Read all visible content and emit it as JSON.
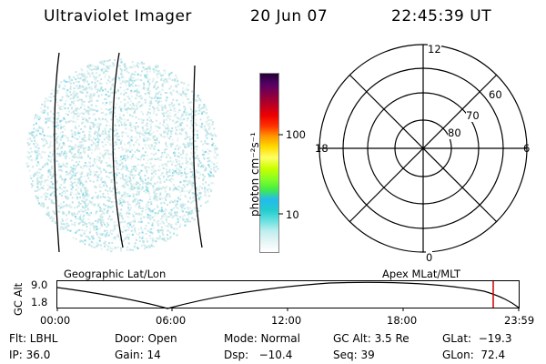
{
  "header": {
    "title": "Ultraviolet Imager",
    "date": "20 Jun 07",
    "time": "22:45:39 UT"
  },
  "colorbar": {
    "unit_label": "photon cm⁻²s⁻¹",
    "ticks": [
      "100",
      "10"
    ],
    "colors": [
      "#ffffff",
      "#e6f5f5",
      "#bfeeee",
      "#66e0e0",
      "#22cccc",
      "#22bbee",
      "#44ee44",
      "#88ff22",
      "#ccff00",
      "#ffff66",
      "#ffdd00",
      "#ff9900",
      "#ff3300",
      "#ee0000",
      "#bb0022",
      "#880044",
      "#550066",
      "#220033"
    ]
  },
  "polar_plot": {
    "mlt_labels": {
      "top": "12",
      "left": "18",
      "right": "6",
      "bottom": "0"
    },
    "lat_labels": [
      "60",
      "70",
      "80"
    ]
  },
  "orbit_panel": {
    "left_title": "Geographic Lat/Lon",
    "right_title": "Apex MLat/MLT",
    "y_axis_label": "GC Alt",
    "y_ticks": [
      "9.0",
      "1.8"
    ],
    "x_ticks": [
      "00:00",
      "06:00",
      "12:00",
      "18:00",
      "23:59"
    ],
    "current_marker_color": "#cc0000"
  },
  "status": {
    "flt": "Flt: LBHL",
    "ip": "IP: 36.0",
    "door": "Door: Open",
    "gain": "Gain: 14",
    "mode": "Mode: Normal",
    "dsp": "Dsp:   −10.4",
    "gcalt": "GC Alt: 3.5 Re",
    "seq": "Seq: 39",
    "glat": "GLat:  −19.3",
    "glon": "GLon:  72.4"
  }
}
